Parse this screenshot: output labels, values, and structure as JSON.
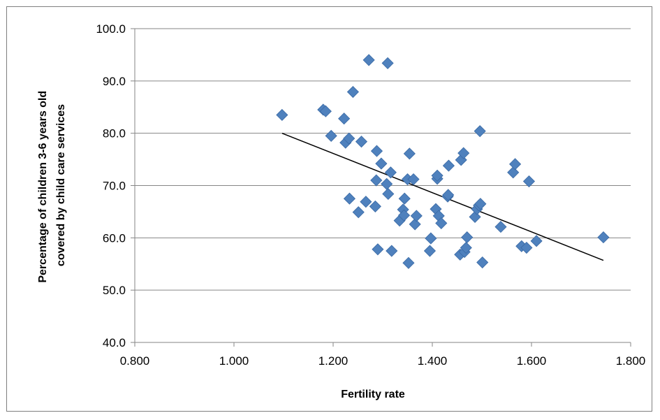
{
  "chart_data": {
    "type": "scatter",
    "title": "",
    "xlabel": "Fertility rate",
    "ylabel_lines": [
      "Percentage of children 3-6 years old",
      "covered by child care services"
    ],
    "xlim": [
      0.8,
      1.8
    ],
    "ylim": [
      40,
      100
    ],
    "x_ticks": [
      0.8,
      1.0,
      1.2,
      1.4,
      1.6,
      1.8
    ],
    "x_tick_labels": [
      "0.800",
      "1.000",
      "1.200",
      "1.400",
      "1.600",
      "1.800"
    ],
    "y_ticks": [
      40,
      50,
      60,
      70,
      80,
      90,
      100
    ],
    "y_tick_labels": [
      "40.0",
      "50.0",
      "60.0",
      "70.0",
      "80.0",
      "90.0",
      "100.0"
    ],
    "grid": "horizontal",
    "marker": "diamond",
    "marker_color": "#4F81BD",
    "trendline": {
      "x": [
        1.097,
        1.745
      ],
      "y": [
        80.0,
        55.7
      ],
      "color": "#000000"
    },
    "points": [
      [
        1.097,
        83.5
      ],
      [
        1.18,
        84.5
      ],
      [
        1.185,
        84.2
      ],
      [
        1.196,
        79.5
      ],
      [
        1.222,
        82.8
      ],
      [
        1.225,
        78.2
      ],
      [
        1.232,
        79.0
      ],
      [
        1.233,
        67.5
      ],
      [
        1.24,
        87.9
      ],
      [
        1.251,
        64.9
      ],
      [
        1.257,
        78.4
      ],
      [
        1.266,
        66.9
      ],
      [
        1.272,
        94.0
      ],
      [
        1.285,
        66.0
      ],
      [
        1.287,
        71.0
      ],
      [
        1.288,
        76.6
      ],
      [
        1.29,
        57.8
      ],
      [
        1.297,
        74.2
      ],
      [
        1.308,
        70.3
      ],
      [
        1.31,
        93.4
      ],
      [
        1.311,
        68.4
      ],
      [
        1.316,
        72.5
      ],
      [
        1.318,
        57.5
      ],
      [
        1.334,
        63.3
      ],
      [
        1.341,
        65.4
      ],
      [
        1.343,
        64.3
      ],
      [
        1.344,
        67.5
      ],
      [
        1.35,
        71.2
      ],
      [
        1.352,
        55.2
      ],
      [
        1.354,
        76.1
      ],
      [
        1.362,
        71.2
      ],
      [
        1.365,
        62.6
      ],
      [
        1.368,
        64.2
      ],
      [
        1.395,
        57.5
      ],
      [
        1.397,
        59.9
      ],
      [
        1.407,
        65.5
      ],
      [
        1.41,
        71.3
      ],
      [
        1.41,
        71.9
      ],
      [
        1.413,
        64.2
      ],
      [
        1.418,
        62.8
      ],
      [
        1.431,
        67.9
      ],
      [
        1.432,
        68.2
      ],
      [
        1.433,
        73.8
      ],
      [
        1.456,
        56.8
      ],
      [
        1.458,
        74.9
      ],
      [
        1.463,
        76.2
      ],
      [
        1.465,
        57.3
      ],
      [
        1.468,
        58.1
      ],
      [
        1.47,
        60.1
      ],
      [
        1.486,
        64.0
      ],
      [
        1.49,
        65.5
      ],
      [
        1.494,
        66.2
      ],
      [
        1.496,
        80.4
      ],
      [
        1.497,
        66.5
      ],
      [
        1.501,
        55.3
      ],
      [
        1.538,
        62.1
      ],
      [
        1.563,
        72.5
      ],
      [
        1.567,
        74.1
      ],
      [
        1.58,
        58.4
      ],
      [
        1.59,
        58.1
      ],
      [
        1.595,
        70.8
      ],
      [
        1.61,
        59.4
      ],
      [
        1.745,
        60.1
      ]
    ]
  }
}
